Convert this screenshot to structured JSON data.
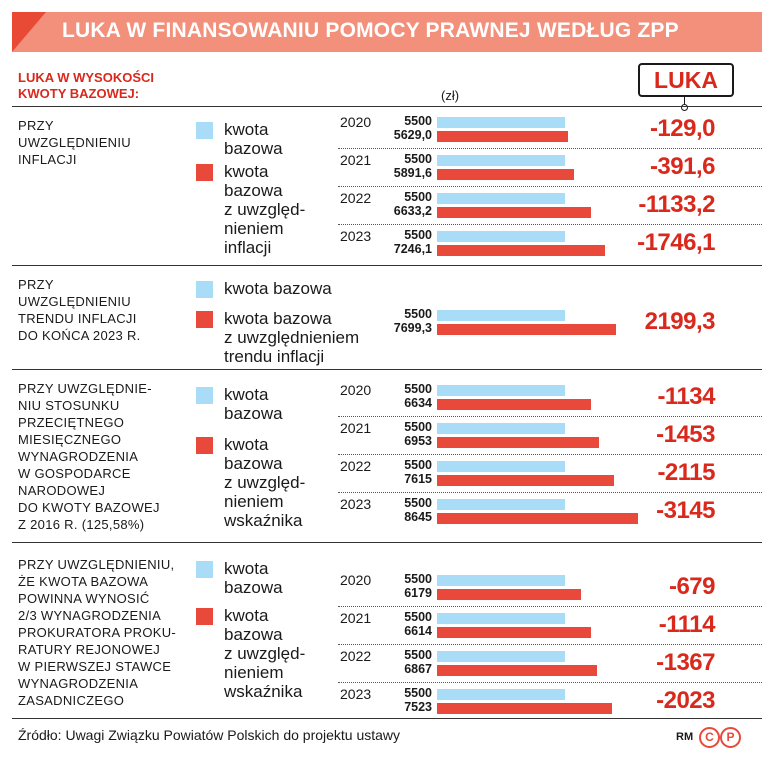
{
  "title": "LUKA W FINANSOWANIU POMOCY PRAWNEJ WEDŁUG ZPP",
  "header": {
    "left_line1": "LUKA W WYSOKOŚCI",
    "left_line2": "KWOTY BAZOWEJ:",
    "unit": "(zł)",
    "luka_label": "LUKA"
  },
  "colors": {
    "base": "#a9dcf6",
    "adjusted": "#e8493a",
    "accent": "#d9281c",
    "title_bg": "#f2907b"
  },
  "sections": [
    {
      "desc": [
        "PRZY",
        "UWZGLĘDNIENIU",
        "INFLACJI"
      ],
      "legend_base": [
        "kwota",
        "bazowa"
      ],
      "legend_adj": [
        "kwota",
        "bazowa",
        "z uwzględ-",
        "nieniem",
        "inflacji"
      ]
    },
    {
      "desc": [
        "PRZY",
        "UWZGLĘDNIENIU",
        "TRENDU INFLACJI",
        "DO KOŃCA 2023 R."
      ],
      "legend_base": [
        "kwota bazowa"
      ],
      "legend_adj": [
        "kwota bazowa",
        "z uwzględnieniem",
        "trendu inflacji"
      ]
    },
    {
      "desc": [
        "PRZY UWZGLĘDNIE-",
        "NIU STOSUNKU",
        "PRZECIĘTNEGO",
        "MIESIĘCZNEGO",
        "WYNAGRODZENIA",
        "W GOSPODARCE",
        "NARODOWEJ",
        "DO KWOTY BAZOWEJ",
        "Z 2016 R. (125,58%)"
      ],
      "legend_base": [
        "kwota",
        "bazowa"
      ],
      "legend_adj": [
        "kwota",
        "bazowa",
        "z uwzględ-",
        "nieniem",
        "wskaźnika"
      ]
    },
    {
      "desc": [
        "PRZY UWZGLĘDNIENIU,",
        "ŻE KWOTA BAZOWA",
        "POWINNA WYNOSIĆ",
        "2/3 WYNAGRODZENIA",
        "PROKURATORA PROKU-",
        "RATURY REJONOWEJ",
        "W PIERWSZEJ STAWCE",
        "WYNAGRODZENIA",
        "ZASADNICZEGO"
      ],
      "legend_base": [
        "kwota",
        "bazowa"
      ],
      "legend_adj": [
        "kwota",
        "bazowa",
        "z uwzględ-",
        "nieniem",
        "wskaźnika"
      ]
    }
  ],
  "chart_data": {
    "type": "bar",
    "unit": "(zł)",
    "groups": [
      {
        "rows": [
          {
            "year": "2020",
            "base": 5500,
            "base_label": "5500",
            "adjusted": 5629.0,
            "adjusted_label": "5629,0",
            "gap_label": "-129,0"
          },
          {
            "year": "2021",
            "base": 5500,
            "base_label": "5500",
            "adjusted": 5891.6,
            "adjusted_label": "5891,6",
            "gap_label": "-391,6"
          },
          {
            "year": "2022",
            "base": 5500,
            "base_label": "5500",
            "adjusted": 6633.2,
            "adjusted_label": "6633,2",
            "gap_label": "-1133,2"
          },
          {
            "year": "2023",
            "base": 5500,
            "base_label": "5500",
            "adjusted": 7246.1,
            "adjusted_label": "7246,1",
            "gap_label": "-1746,1"
          }
        ]
      },
      {
        "rows": [
          {
            "year": "",
            "base": 5500,
            "base_label": "5500",
            "adjusted": 7699.3,
            "adjusted_label": "7699,3",
            "gap_label": "2199,3"
          }
        ]
      },
      {
        "rows": [
          {
            "year": "2020",
            "base": 5500,
            "base_label": "5500",
            "adjusted": 6634,
            "adjusted_label": "6634",
            "gap_label": "-1134"
          },
          {
            "year": "2021",
            "base": 5500,
            "base_label": "5500",
            "adjusted": 6953,
            "adjusted_label": "6953",
            "gap_label": "-1453"
          },
          {
            "year": "2022",
            "base": 5500,
            "base_label": "5500",
            "adjusted": 7615,
            "adjusted_label": "7615",
            "gap_label": "-2115"
          },
          {
            "year": "2023",
            "base": 5500,
            "base_label": "5500",
            "adjusted": 8645,
            "adjusted_label": "8645",
            "gap_label": "-3145"
          }
        ]
      },
      {
        "rows": [
          {
            "year": "2020",
            "base": 5500,
            "base_label": "5500",
            "adjusted": 6179,
            "adjusted_label": "6179",
            "gap_label": "-679"
          },
          {
            "year": "2021",
            "base": 5500,
            "base_label": "5500",
            "adjusted": 6614,
            "adjusted_label": "6614",
            "gap_label": "-1114"
          },
          {
            "year": "2022",
            "base": 5500,
            "base_label": "5500",
            "adjusted": 6867,
            "adjusted_label": "6867",
            "gap_label": "-1367"
          },
          {
            "year": "2023",
            "base": 5500,
            "base_label": "5500",
            "adjusted": 7523,
            "adjusted_label": "7523",
            "gap_label": "-2023"
          }
        ]
      }
    ]
  },
  "footer": {
    "source": "Źródło: Uwagi Związku Powiatów Polskich do projektu ustawy",
    "author": "RM",
    "logo_c": "C",
    "logo_p": "P"
  }
}
